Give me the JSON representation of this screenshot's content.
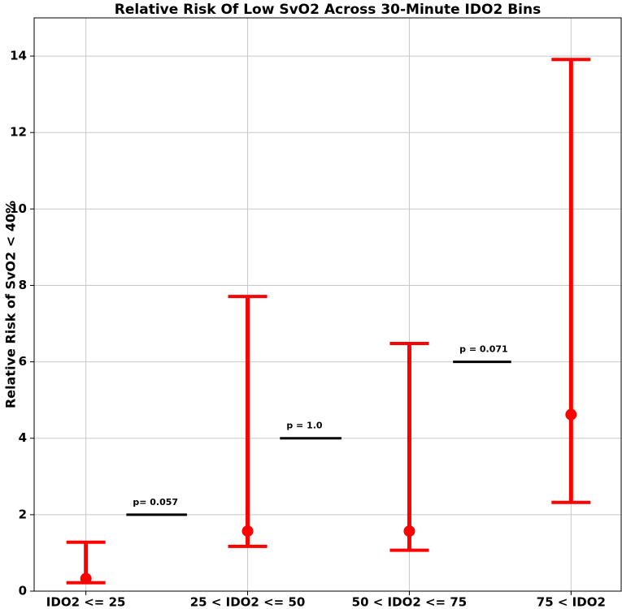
{
  "chart_data": {
    "type": "errorbar",
    "title": "Relative Risk Of Low SvO2 Across 30-Minute IDO2 Bins",
    "y_label": "Relative Risk of SvO2 < 40%",
    "categories": [
      "IDO2 <= 25",
      "25 < IDO2 <= 50",
      "50 < IDO2 <= 75",
      "75 < IDO2"
    ],
    "values": [
      0.33,
      1.57,
      1.57,
      4.62
    ],
    "ci_lower": [
      0.22,
      1.17,
      1.07,
      2.32
    ],
    "ci_upper": [
      1.28,
      7.71,
      6.48,
      13.91
    ],
    "color": "#ff0000",
    "ylim": [
      0,
      15
    ],
    "yticks": [
      0,
      2,
      4,
      6,
      8,
      10,
      12,
      14
    ],
    "grid": true,
    "annotations": [
      {
        "label": "p= 0.057",
        "y": 2,
        "x": [
          0.25,
          0.625
        ],
        "color": "#000000"
      },
      {
        "label": "p = 1.0",
        "y": 4,
        "x": [
          1.2,
          1.58
        ],
        "color": "#000000"
      },
      {
        "label": "p = 0.071",
        "y": 6,
        "x": [
          2.27,
          2.63
        ],
        "color": "#000000"
      }
    ]
  }
}
